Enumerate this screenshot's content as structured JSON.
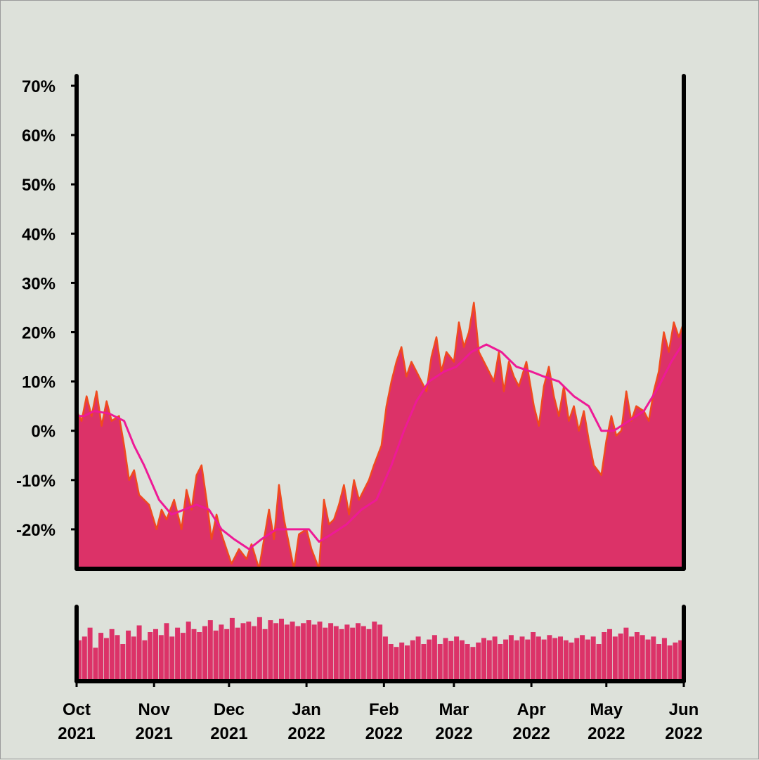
{
  "chart_data": {
    "type": "area",
    "y_tick_labels": [
      "70%",
      "60%",
      "50%",
      "40%",
      "30%",
      "20%",
      "10%",
      "0%",
      "-10%",
      "-20%"
    ],
    "y_ticks": [
      70,
      60,
      50,
      40,
      30,
      20,
      10,
      0,
      -10,
      -20
    ],
    "ylim": [
      -28,
      72
    ],
    "x_tick_labels": [
      {
        "month": "Oct",
        "year": "2021",
        "date": "2021-10-01"
      },
      {
        "month": "Nov",
        "year": "2021",
        "date": "2021-11-01"
      },
      {
        "month": "Dec",
        "year": "2021",
        "date": "2021-12-01"
      },
      {
        "month": "Jan",
        "year": "2022",
        "date": "2022-01-01"
      },
      {
        "month": "Feb",
        "year": "2022",
        "date": "2022-02-01"
      },
      {
        "month": "Mar",
        "year": "2022",
        "date": "2022-03-01"
      },
      {
        "month": "Apr",
        "year": "2022",
        "date": "2022-04-01"
      },
      {
        "month": "May",
        "year": "2022",
        "date": "2022-05-01"
      },
      {
        "month": "Jun",
        "year": "2022",
        "date": "2022-06-01"
      }
    ],
    "xlim": [
      "2021-10-01",
      "2022-06-01"
    ],
    "grid": false,
    "colors": {
      "daily_line": "#f04a1e",
      "area_fill": "#dc3268",
      "moving_average": "#ee1a96",
      "volume_bars": "#dc3268",
      "axes": "#000000",
      "background": "#dde1da"
    },
    "series": [
      {
        "role": "daily",
        "points": [
          [
            "2021-10-01",
            4
          ],
          [
            "2021-10-03",
            2
          ],
          [
            "2021-10-05",
            7
          ],
          [
            "2021-10-07",
            3
          ],
          [
            "2021-10-09",
            8
          ],
          [
            "2021-10-11",
            1
          ],
          [
            "2021-10-13",
            6
          ],
          [
            "2021-10-15",
            2
          ],
          [
            "2021-10-18",
            3
          ],
          [
            "2021-10-20",
            -3
          ],
          [
            "2021-10-22",
            -10
          ],
          [
            "2021-10-24",
            -8
          ],
          [
            "2021-10-26",
            -13
          ],
          [
            "2021-10-28",
            -14
          ],
          [
            "2021-10-30",
            -15
          ],
          [
            "2021-11-02",
            -20
          ],
          [
            "2021-11-04",
            -16
          ],
          [
            "2021-11-06",
            -18
          ],
          [
            "2021-11-09",
            -14
          ],
          [
            "2021-11-12",
            -20
          ],
          [
            "2021-11-14",
            -12
          ],
          [
            "2021-11-16",
            -16
          ],
          [
            "2021-11-18",
            -9
          ],
          [
            "2021-11-20",
            -7
          ],
          [
            "2021-11-22",
            -14
          ],
          [
            "2021-11-24",
            -22
          ],
          [
            "2021-11-26",
            -17
          ],
          [
            "2021-11-28",
            -21
          ],
          [
            "2021-11-30",
            -24
          ],
          [
            "2021-12-02",
            -27
          ],
          [
            "2021-12-05",
            -24
          ],
          [
            "2021-12-08",
            -26
          ],
          [
            "2021-12-10",
            -23
          ],
          [
            "2021-12-13",
            -28
          ],
          [
            "2021-12-15",
            -22
          ],
          [
            "2021-12-17",
            -16
          ],
          [
            "2021-12-19",
            -22
          ],
          [
            "2021-12-21",
            -11
          ],
          [
            "2021-12-23",
            -18
          ],
          [
            "2021-12-25",
            -23
          ],
          [
            "2021-12-27",
            -28
          ],
          [
            "2021-12-29",
            -21
          ],
          [
            "2022-01-01",
            -20
          ],
          [
            "2022-01-03",
            -24
          ],
          [
            "2022-01-06",
            -28
          ],
          [
            "2022-01-08",
            -14
          ],
          [
            "2022-01-10",
            -19
          ],
          [
            "2022-01-12",
            -18
          ],
          [
            "2022-01-14",
            -15
          ],
          [
            "2022-01-16",
            -11
          ],
          [
            "2022-01-18",
            -17
          ],
          [
            "2022-01-20",
            -10
          ],
          [
            "2022-01-22",
            -14
          ],
          [
            "2022-01-24",
            -12
          ],
          [
            "2022-01-26",
            -10
          ],
          [
            "2022-01-28",
            -7
          ],
          [
            "2022-01-31",
            -3
          ],
          [
            "2022-02-02",
            5
          ],
          [
            "2022-02-04",
            10
          ],
          [
            "2022-02-06",
            14
          ],
          [
            "2022-02-08",
            17
          ],
          [
            "2022-02-10",
            11
          ],
          [
            "2022-02-12",
            14
          ],
          [
            "2022-02-14",
            12
          ],
          [
            "2022-02-16",
            10
          ],
          [
            "2022-02-18",
            8
          ],
          [
            "2022-02-20",
            15
          ],
          [
            "2022-02-22",
            19
          ],
          [
            "2022-02-24",
            12
          ],
          [
            "2022-02-26",
            16
          ],
          [
            "2022-03-01",
            14
          ],
          [
            "2022-03-03",
            22
          ],
          [
            "2022-03-05",
            17
          ],
          [
            "2022-03-07",
            20
          ],
          [
            "2022-03-09",
            26
          ],
          [
            "2022-03-11",
            16
          ],
          [
            "2022-03-13",
            14
          ],
          [
            "2022-03-15",
            12
          ],
          [
            "2022-03-17",
            10
          ],
          [
            "2022-03-19",
            16
          ],
          [
            "2022-03-21",
            8
          ],
          [
            "2022-03-23",
            14
          ],
          [
            "2022-03-25",
            11
          ],
          [
            "2022-03-27",
            9
          ],
          [
            "2022-03-30",
            14
          ],
          [
            "2022-04-02",
            5
          ],
          [
            "2022-04-04",
            1
          ],
          [
            "2022-04-06",
            9
          ],
          [
            "2022-04-08",
            13
          ],
          [
            "2022-04-10",
            7
          ],
          [
            "2022-04-12",
            3
          ],
          [
            "2022-04-14",
            9
          ],
          [
            "2022-04-16",
            2
          ],
          [
            "2022-04-18",
            5
          ],
          [
            "2022-04-20",
            0
          ],
          [
            "2022-04-22",
            4
          ],
          [
            "2022-04-24",
            -2
          ],
          [
            "2022-04-26",
            -7
          ],
          [
            "2022-04-29",
            -9
          ],
          [
            "2022-05-01",
            -2
          ],
          [
            "2022-05-03",
            3
          ],
          [
            "2022-05-05",
            -1
          ],
          [
            "2022-05-07",
            0
          ],
          [
            "2022-05-09",
            8
          ],
          [
            "2022-05-11",
            2
          ],
          [
            "2022-05-13",
            5
          ],
          [
            "2022-05-16",
            4
          ],
          [
            "2022-05-18",
            2
          ],
          [
            "2022-05-20",
            8
          ],
          [
            "2022-05-22",
            12
          ],
          [
            "2022-05-24",
            20
          ],
          [
            "2022-05-26",
            16
          ],
          [
            "2022-05-28",
            22
          ],
          [
            "2022-05-30",
            19
          ],
          [
            "2022-06-01",
            22
          ]
        ]
      },
      {
        "role": "moving_average",
        "points": [
          [
            "2021-10-01",
            3
          ],
          [
            "2021-10-04",
            3
          ],
          [
            "2021-10-08",
            4
          ],
          [
            "2021-10-14",
            3.5
          ],
          [
            "2021-10-20",
            2
          ],
          [
            "2021-10-24",
            -3
          ],
          [
            "2021-10-28",
            -7
          ],
          [
            "2021-11-03",
            -14
          ],
          [
            "2021-11-08",
            -17
          ],
          [
            "2021-11-13",
            -16
          ],
          [
            "2021-11-18",
            -15
          ],
          [
            "2021-11-23",
            -16
          ],
          [
            "2021-11-28",
            -20
          ],
          [
            "2021-12-03",
            -22
          ],
          [
            "2021-12-09",
            -24
          ],
          [
            "2021-12-14",
            -22
          ],
          [
            "2021-12-20",
            -20
          ],
          [
            "2021-12-26",
            -20
          ],
          [
            "2022-01-02",
            -20
          ],
          [
            "2022-01-06",
            -22.5
          ],
          [
            "2022-01-11",
            -21
          ],
          [
            "2022-01-17",
            -19
          ],
          [
            "2022-01-23",
            -16
          ],
          [
            "2022-01-29",
            -14
          ],
          [
            "2022-02-04",
            -7
          ],
          [
            "2022-02-09",
            0
          ],
          [
            "2022-02-14",
            6
          ],
          [
            "2022-02-19",
            10
          ],
          [
            "2022-02-25",
            12
          ],
          [
            "2022-03-02",
            13
          ],
          [
            "2022-03-08",
            16
          ],
          [
            "2022-03-14",
            17.5
          ],
          [
            "2022-03-20",
            16
          ],
          [
            "2022-03-26",
            13
          ],
          [
            "2022-04-01",
            12
          ],
          [
            "2022-04-06",
            11
          ],
          [
            "2022-04-12",
            10
          ],
          [
            "2022-04-18",
            7
          ],
          [
            "2022-04-24",
            5
          ],
          [
            "2022-04-29",
            0
          ],
          [
            "2022-05-04",
            0
          ],
          [
            "2022-05-10",
            2
          ],
          [
            "2022-05-16",
            4
          ],
          [
            "2022-05-22",
            9
          ],
          [
            "2022-05-27",
            14
          ],
          [
            "2022-06-01",
            18
          ]
        ]
      },
      {
        "role": "volume",
        "relative_levels": [
          0.55,
          0.6,
          0.72,
          0.45,
          0.65,
          0.58,
          0.7,
          0.62,
          0.5,
          0.68,
          0.6,
          0.75,
          0.55,
          0.66,
          0.7,
          0.62,
          0.78,
          0.6,
          0.72,
          0.65,
          0.8,
          0.7,
          0.66,
          0.74,
          0.82,
          0.68,
          0.76,
          0.7,
          0.85,
          0.72,
          0.78,
          0.8,
          0.74,
          0.86,
          0.7,
          0.82,
          0.78,
          0.84,
          0.76,
          0.8,
          0.74,
          0.78,
          0.82,
          0.76,
          0.8,
          0.72,
          0.78,
          0.74,
          0.7,
          0.76,
          0.72,
          0.78,
          0.74,
          0.7,
          0.8,
          0.76,
          0.6,
          0.5,
          0.46,
          0.52,
          0.48,
          0.55,
          0.6,
          0.5,
          0.56,
          0.62,
          0.5,
          0.58,
          0.54,
          0.6,
          0.55,
          0.5,
          0.46,
          0.52,
          0.58,
          0.55,
          0.6,
          0.5,
          0.56,
          0.62,
          0.55,
          0.6,
          0.56,
          0.66,
          0.6,
          0.56,
          0.62,
          0.58,
          0.6,
          0.55,
          0.52,
          0.58,
          0.62,
          0.56,
          0.6,
          0.5,
          0.66,
          0.7,
          0.6,
          0.64,
          0.72,
          0.6,
          0.66,
          0.62,
          0.56,
          0.6,
          0.5,
          0.58,
          0.48,
          0.52,
          0.55
        ]
      }
    ]
  }
}
